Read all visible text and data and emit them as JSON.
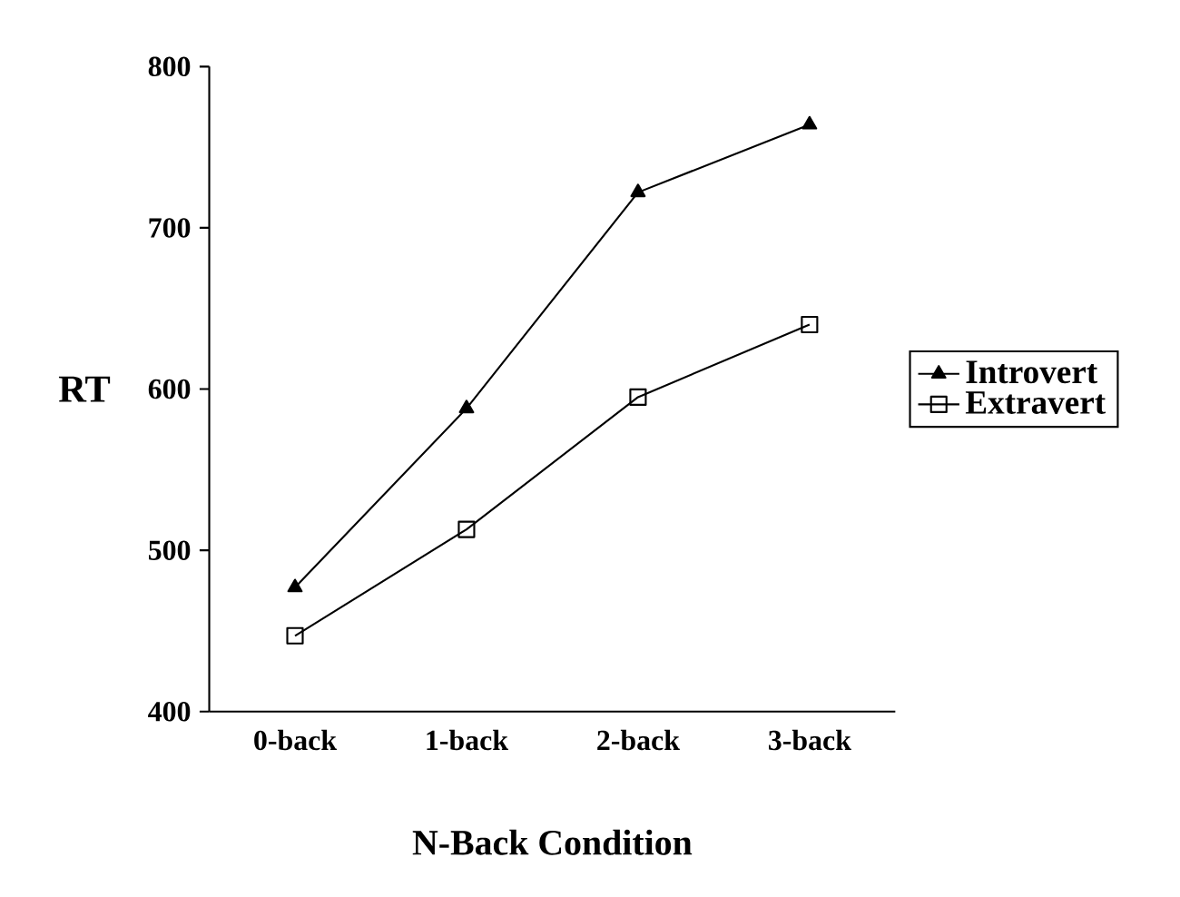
{
  "chart_data": {
    "type": "line",
    "xlabel": "N-Back Condition",
    "ylabel": "RT",
    "categories": [
      "0-back",
      "1-back",
      "2-back",
      "3-back"
    ],
    "series": [
      {
        "name": "Introvert",
        "color": "#000000",
        "marker": "triangle",
        "values": [
          477,
          588,
          722,
          764
        ]
      },
      {
        "name": "Extravert",
        "color": "#000000",
        "marker": "square",
        "values": [
          447,
          513,
          595,
          640
        ]
      }
    ],
    "ylim": [
      400,
      800
    ],
    "yticks": [
      400,
      500,
      600,
      700,
      800
    ],
    "legend": "right",
    "grid": false,
    "line_style": "solid"
  }
}
